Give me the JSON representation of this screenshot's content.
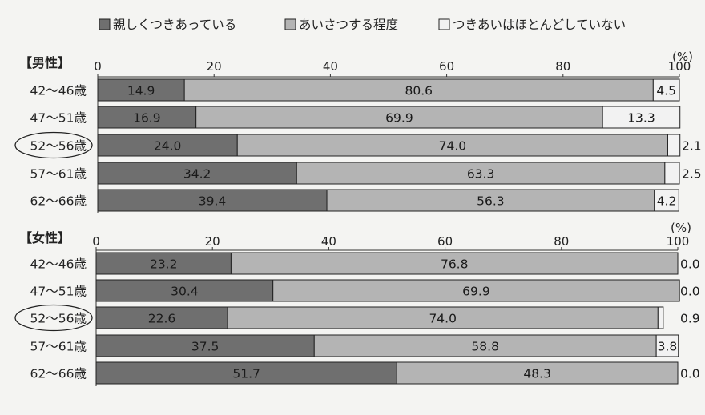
{
  "legend": [
    {
      "label": "親しくつきあっている",
      "color": "#6f6f6f",
      "icon": "dark-gray-square"
    },
    {
      "label": "あいさつする程度",
      "color": "#b4b4b4",
      "icon": "mid-gray-square"
    },
    {
      "label": "つきあいはほとんどしていない",
      "color": "#f2f2f2",
      "icon": "white-square"
    }
  ],
  "chart_data": [
    {
      "type": "bar",
      "orientation": "horizontal",
      "stacked": true,
      "title": "【男性】",
      "unit": "(%)",
      "xlim": [
        0,
        100
      ],
      "xticks": [
        "0",
        "20",
        "40",
        "60",
        "80",
        "100"
      ],
      "categories": [
        "42〜46歳",
        "47〜51歳",
        "52〜56歳",
        "57〜61歳",
        "62〜66歳"
      ],
      "highlighted_category": "52〜56歳",
      "series": [
        {
          "name": "親しくつきあっている",
          "values": [
            14.9,
            16.9,
            24.0,
            34.2,
            39.4
          ],
          "labels": [
            "14.9",
            "16.9",
            "24.0",
            "34.2",
            "39.4"
          ]
        },
        {
          "name": "あいさつする程度",
          "values": [
            80.6,
            69.9,
            74.0,
            63.3,
            56.3
          ],
          "labels": [
            "80.6",
            "69.9",
            "74.0",
            "63.3",
            "56.3"
          ]
        },
        {
          "name": "つきあいはほとんどしていない",
          "values": [
            4.5,
            13.3,
            2.1,
            2.5,
            4.2
          ],
          "labels": [
            "4.5",
            "13.3",
            "2.1",
            "2.5",
            "4.2"
          ]
        }
      ]
    },
    {
      "type": "bar",
      "orientation": "horizontal",
      "stacked": true,
      "title": "【女性】",
      "unit": "(%)",
      "xlim": [
        0,
        100
      ],
      "xticks": [
        "0",
        "20",
        "40",
        "60",
        "80",
        "100"
      ],
      "categories": [
        "42〜46歳",
        "47〜51歳",
        "52〜56歳",
        "57〜61歳",
        "62〜66歳"
      ],
      "highlighted_category": "52〜56歳",
      "series": [
        {
          "name": "親しくつきあっている",
          "values": [
            23.2,
            30.4,
            22.6,
            37.5,
            51.7
          ],
          "labels": [
            "23.2",
            "30.4",
            "22.6",
            "37.5",
            "51.7"
          ]
        },
        {
          "name": "あいさつする程度",
          "values": [
            76.8,
            69.9,
            74.0,
            58.8,
            48.3
          ],
          "labels": [
            "76.8",
            "69.9",
            "74.0",
            "58.8",
            "48.3"
          ]
        },
        {
          "name": "つきあいはほとんどしていない",
          "values": [
            0.0,
            0.0,
            0.9,
            3.8,
            0.0
          ],
          "labels": [
            "0.0",
            "0.0",
            "0.9",
            "3.8",
            "0.0"
          ]
        }
      ]
    }
  ]
}
